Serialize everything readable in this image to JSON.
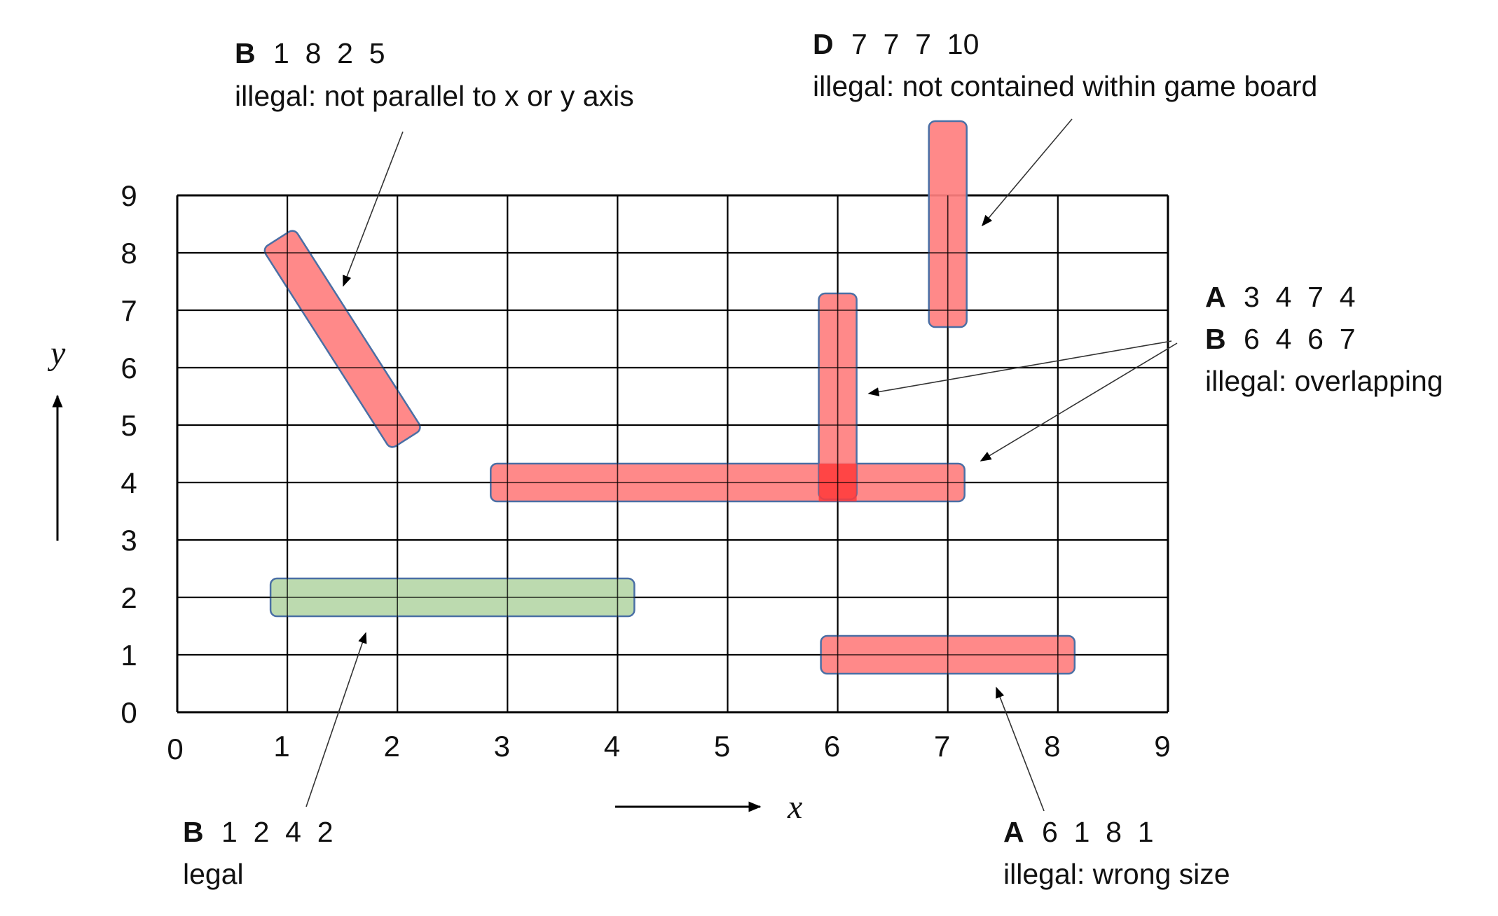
{
  "grid": {
    "x_ticks": [
      "0",
      "1",
      "2",
      "3",
      "4",
      "5",
      "6",
      "7",
      "8",
      "9"
    ],
    "y_ticks": [
      "0",
      "1",
      "2",
      "3",
      "4",
      "5",
      "6",
      "7",
      "8",
      "9"
    ],
    "x_name": "x",
    "y_name": "y",
    "x_range": [
      0,
      9
    ],
    "y_range": [
      0,
      9
    ]
  },
  "ships": [
    {
      "id": "ship-b-1825",
      "from": [
        1,
        8
      ],
      "to": [
        2,
        5
      ],
      "status": "illegal",
      "color": "#ff7f7f"
    },
    {
      "id": "ship-d-77710",
      "from": [
        7,
        7
      ],
      "to": [
        7,
        10
      ],
      "status": "illegal",
      "color": "#ff7f7f"
    },
    {
      "id": "ship-a-3474",
      "from": [
        3,
        4
      ],
      "to": [
        7,
        4
      ],
      "status": "illegal",
      "color": "#ff7f7f"
    },
    {
      "id": "ship-b-6467",
      "from": [
        6,
        4
      ],
      "to": [
        6,
        7
      ],
      "status": "illegal",
      "color": "#ff7f7f"
    },
    {
      "id": "ship-b-1242",
      "from": [
        1,
        2
      ],
      "to": [
        4,
        2
      ],
      "status": "legal",
      "color": "#b6d7a8"
    },
    {
      "id": "ship-a-6181",
      "from": [
        6,
        1
      ],
      "to": [
        8,
        1
      ],
      "status": "illegal",
      "color": "#ff7f7f"
    }
  ],
  "annotations": {
    "b1825": {
      "letter": "B",
      "numbers": "1  8  2  5",
      "note": "illegal: not parallel to x or y axis"
    },
    "d77710": {
      "letter": "D",
      "numbers": "7  7  7  10",
      "note": "illegal: not contained within game board"
    },
    "overlap": {
      "letter_a": "A",
      "numbers_a": "3  4  7  4",
      "letter_b": "B",
      "numbers_b": "6  4  6  7",
      "note": "illegal: overlapping"
    },
    "b1242": {
      "letter": "B",
      "numbers": "1  2  4  2",
      "note": "legal"
    },
    "a6181": {
      "letter": "A",
      "numbers": "6  1  8  1",
      "note": "illegal: wrong size"
    }
  },
  "colors": {
    "illegal_fill": "#ff7f7f",
    "legal_fill": "#b6d7a8",
    "overlap_fill": "#ff3b3b",
    "ship_stroke": "#4a6fa5",
    "grid_line": "#000000"
  }
}
